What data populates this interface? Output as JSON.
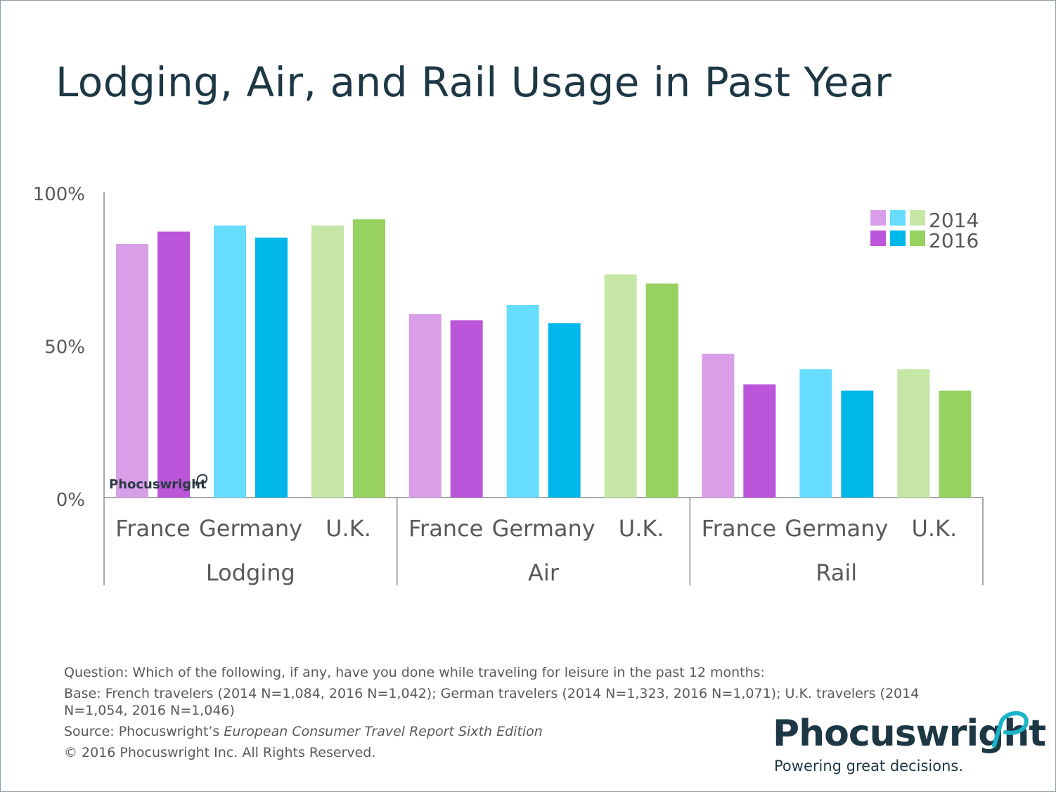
{
  "title": "Lodging, Air, and Rail Usage in Past Year",
  "chart_data": {
    "type": "bar",
    "title": "",
    "ylim": [
      0,
      100
    ],
    "yticks": [
      "0%",
      "50%",
      "100%"
    ],
    "groups": [
      {
        "name": "Lodging",
        "categories": [
          "France",
          "Germany",
          "U.K."
        ]
      },
      {
        "name": "Air",
        "categories": [
          "France",
          "Germany",
          "U.K."
        ]
      },
      {
        "name": "Rail",
        "categories": [
          "France",
          "Germany",
          "U.K."
        ]
      }
    ],
    "series": [
      {
        "name": "2014",
        "values": [
          [
            83,
            89,
            89
          ],
          [
            60,
            63,
            73
          ],
          [
            47,
            42,
            42
          ]
        ]
      },
      {
        "name": "2016",
        "values": [
          [
            87,
            85,
            91
          ],
          [
            58,
            57,
            70
          ],
          [
            37,
            35,
            35
          ]
        ]
      }
    ],
    "colors": {
      "France": [
        "#d99ee8",
        "#bb55d9"
      ],
      "Germany": [
        "#66dcfe",
        "#00b7ea"
      ],
      "U.K.": [
        "#c6e6a6",
        "#97d160"
      ]
    },
    "legend": {
      "placement": "top-right",
      "labels": [
        "2014",
        "2016"
      ]
    },
    "grid": false
  },
  "watermark": "Phocuswright",
  "notes": {
    "question": "Question: Which of the following, if any, have you done while traveling for leisure in the past 12 months:",
    "base": "Base: French travelers (2014 N=1,084, 2016 N=1,042); German travelers (2014 N=1,323, 2016 N=1,071); U.K. travelers (2014 N=1,054, 2016 N=1,046)",
    "source_prefix": "Source: Phocuswright’s ",
    "source_title": "European Consumer Travel Report Sixth Edition",
    "copyright": "© 2016 Phocuswright Inc. All Rights Reserved."
  },
  "logo": {
    "word": "Phocuswright",
    "tagline": "Powering great decisions.",
    "brand_color": "#1d3745",
    "accent_color": "#1ab3c9"
  }
}
